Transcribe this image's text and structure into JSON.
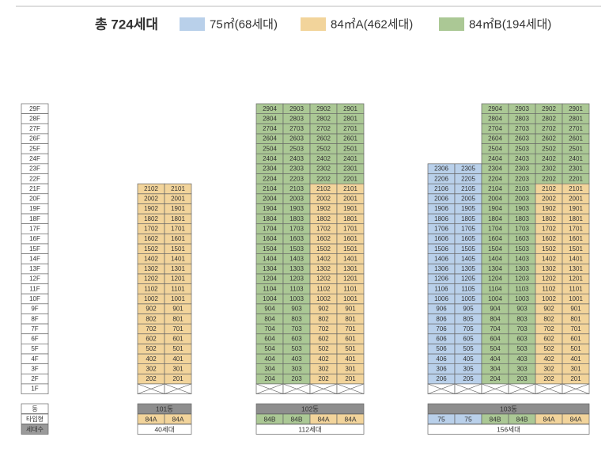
{
  "header": {
    "total": "총 724세대",
    "legend": [
      {
        "label": "75㎡(68세대)",
        "color": "#b9d0ea"
      },
      {
        "label": "84㎡A(462세대)",
        "color": "#f2d49b"
      },
      {
        "label": "84㎡B(194세대)",
        "color": "#abc895"
      }
    ]
  },
  "floor_labels": [
    "29F",
    "28F",
    "27F",
    "26F",
    "25F",
    "24F",
    "23F",
    "22F",
    "21F",
    "20F",
    "19F",
    "18F",
    "17F",
    "16F",
    "15F",
    "14F",
    "13F",
    "12F",
    "11F",
    "10F",
    "9F",
    "8F",
    "7F",
    "6F",
    "5F",
    "4F",
    "3F",
    "2F",
    "1F"
  ],
  "row_labels": [
    "동",
    "타입형",
    "세대수"
  ],
  "buildings": [
    {
      "name": "101동",
      "households": "40세대",
      "types": [
        "84A",
        "84A"
      ],
      "type_kinds": [
        1,
        1
      ],
      "units": [
        [
          "202",
          "201"
        ],
        [
          "302",
          "301"
        ],
        [
          "402",
          "401"
        ],
        [
          "502",
          "501"
        ],
        [
          "602",
          "601"
        ],
        [
          "702",
          "701"
        ],
        [
          "802",
          "801"
        ],
        [
          "902",
          "901"
        ],
        [
          "1002",
          "1001"
        ],
        [
          "1102",
          "1101"
        ],
        [
          "1202",
          "1201"
        ],
        [
          "1302",
          "1301"
        ],
        [
          "1402",
          "1401"
        ],
        [
          "1502",
          "1501"
        ],
        [
          "1602",
          "1601"
        ],
        [
          "1702",
          "1701"
        ],
        [
          "1802",
          "1801"
        ],
        [
          "1902",
          "1901"
        ],
        [
          "2002",
          "2001"
        ],
        [
          "2102",
          "2101"
        ]
      ],
      "kinds": [
        [
          1,
          1
        ],
        [
          1,
          1
        ],
        [
          1,
          1
        ],
        [
          1,
          1
        ],
        [
          1,
          1
        ],
        [
          1,
          1
        ],
        [
          1,
          1
        ],
        [
          1,
          1
        ],
        [
          1,
          1
        ],
        [
          1,
          1
        ],
        [
          1,
          1
        ],
        [
          1,
          1
        ],
        [
          1,
          1
        ],
        [
          1,
          1
        ],
        [
          1,
          1
        ],
        [
          1,
          1
        ],
        [
          1,
          1
        ],
        [
          1,
          1
        ],
        [
          1,
          1
        ],
        [
          1,
          1
        ]
      ]
    },
    {
      "name": "102동",
      "households": "112세대",
      "types": [
        "84B",
        "84B",
        "84A",
        "84A"
      ],
      "type_kinds": [
        2,
        2,
        1,
        1
      ],
      "units": [
        [
          "204",
          "203",
          "202",
          "201"
        ],
        [
          "304",
          "303",
          "302",
          "301"
        ],
        [
          "404",
          "403",
          "402",
          "401"
        ],
        [
          "504",
          "503",
          "502",
          "501"
        ],
        [
          "604",
          "603",
          "602",
          "601"
        ],
        [
          "704",
          "703",
          "702",
          "701"
        ],
        [
          "804",
          "803",
          "802",
          "801"
        ],
        [
          "904",
          "903",
          "902",
          "901"
        ],
        [
          "1004",
          "1003",
          "1002",
          "1001"
        ],
        [
          "1104",
          "1103",
          "1102",
          "1101"
        ],
        [
          "1204",
          "1203",
          "1202",
          "1201"
        ],
        [
          "1304",
          "1303",
          "1302",
          "1301"
        ],
        [
          "1404",
          "1403",
          "1402",
          "1401"
        ],
        [
          "1504",
          "1503",
          "1502",
          "1501"
        ],
        [
          "1604",
          "1603",
          "1602",
          "1601"
        ],
        [
          "1704",
          "1703",
          "1702",
          "1701"
        ],
        [
          "1804",
          "1803",
          "1802",
          "1801"
        ],
        [
          "1904",
          "1903",
          "1902",
          "1901"
        ],
        [
          "2004",
          "2003",
          "2002",
          "2001"
        ],
        [
          "2104",
          "2103",
          "2102",
          "2101"
        ],
        [
          "2204",
          "2203",
          "2202",
          "2201"
        ],
        [
          "2304",
          "2303",
          "2302",
          "2301"
        ],
        [
          "2404",
          "2403",
          "2402",
          "2401"
        ],
        [
          "2504",
          "2503",
          "2502",
          "2501"
        ],
        [
          "2604",
          "2603",
          "2602",
          "2601"
        ],
        [
          "2704",
          "2703",
          "2702",
          "2701"
        ],
        [
          "2804",
          "2803",
          "2802",
          "2801"
        ],
        [
          "2904",
          "2903",
          "2902",
          "2901"
        ]
      ],
      "kinds": [
        [
          2,
          2,
          1,
          1
        ],
        [
          2,
          2,
          1,
          1
        ],
        [
          2,
          2,
          1,
          1
        ],
        [
          2,
          2,
          1,
          1
        ],
        [
          2,
          2,
          1,
          1
        ],
        [
          2,
          2,
          1,
          1
        ],
        [
          2,
          2,
          1,
          1
        ],
        [
          2,
          2,
          1,
          1
        ],
        [
          2,
          2,
          1,
          1
        ],
        [
          2,
          2,
          1,
          1
        ],
        [
          2,
          2,
          1,
          1
        ],
        [
          2,
          2,
          1,
          1
        ],
        [
          2,
          2,
          1,
          1
        ],
        [
          2,
          2,
          1,
          1
        ],
        [
          2,
          2,
          1,
          1
        ],
        [
          2,
          2,
          1,
          1
        ],
        [
          2,
          2,
          1,
          1
        ],
        [
          2,
          2,
          1,
          1
        ],
        [
          2,
          2,
          1,
          1
        ],
        [
          2,
          2,
          1,
          1
        ],
        [
          2,
          2,
          2,
          2
        ],
        [
          2,
          2,
          2,
          2
        ],
        [
          2,
          2,
          2,
          2
        ],
        [
          2,
          2,
          2,
          2
        ],
        [
          2,
          2,
          2,
          2
        ],
        [
          2,
          2,
          2,
          2
        ],
        [
          2,
          2,
          2,
          2
        ],
        [
          2,
          2,
          2,
          2
        ]
      ]
    },
    {
      "name": "103동",
      "households": "156세대",
      "types": [
        "75",
        "75",
        "84B",
        "84B",
        "84A",
        "84A"
      ],
      "type_kinds": [
        0,
        0,
        2,
        2,
        1,
        1
      ],
      "units": [
        [
          "206",
          "205",
          "204",
          "203",
          "202",
          "201"
        ],
        [
          "306",
          "305",
          "304",
          "303",
          "302",
          "301"
        ],
        [
          "406",
          "405",
          "404",
          "403",
          "402",
          "401"
        ],
        [
          "506",
          "505",
          "504",
          "503",
          "502",
          "501"
        ],
        [
          "606",
          "605",
          "604",
          "603",
          "602",
          "601"
        ],
        [
          "706",
          "705",
          "704",
          "703",
          "702",
          "701"
        ],
        [
          "806",
          "805",
          "804",
          "803",
          "802",
          "801"
        ],
        [
          "906",
          "905",
          "904",
          "903",
          "902",
          "901"
        ],
        [
          "1006",
          "1005",
          "1004",
          "1003",
          "1002",
          "1001"
        ],
        [
          "1106",
          "1105",
          "1104",
          "1103",
          "1102",
          "1101"
        ],
        [
          "1206",
          "1205",
          "1204",
          "1203",
          "1202",
          "1201"
        ],
        [
          "1306",
          "1305",
          "1304",
          "1303",
          "1302",
          "1301"
        ],
        [
          "1406",
          "1405",
          "1404",
          "1403",
          "1402",
          "1401"
        ],
        [
          "1506",
          "1505",
          "1504",
          "1503",
          "1502",
          "1501"
        ],
        [
          "1606",
          "1605",
          "1604",
          "1603",
          "1602",
          "1601"
        ],
        [
          "1706",
          "1705",
          "1704",
          "1703",
          "1702",
          "1701"
        ],
        [
          "1806",
          "1805",
          "1804",
          "1803",
          "1802",
          "1801"
        ],
        [
          "1906",
          "1905",
          "1904",
          "1903",
          "1902",
          "1901"
        ],
        [
          "2006",
          "2005",
          "2004",
          "2003",
          "2002",
          "2001"
        ],
        [
          "2106",
          "2105",
          "2104",
          "2103",
          "2102",
          "2101"
        ],
        [
          "2206",
          "2205",
          "2204",
          "2203",
          "2202",
          "2201"
        ],
        [
          "2306",
          "2305",
          "2304",
          "2303",
          "2302",
          "2301"
        ],
        [
          null,
          null,
          "2404",
          "2403",
          "2402",
          "2401"
        ],
        [
          null,
          null,
          "2504",
          "2503",
          "2502",
          "2501"
        ],
        [
          null,
          null,
          "2604",
          "2603",
          "2602",
          "2601"
        ],
        [
          null,
          null,
          "2704",
          "2703",
          "2702",
          "2701"
        ],
        [
          null,
          null,
          "2804",
          "2803",
          "2802",
          "2801"
        ],
        [
          null,
          null,
          "2904",
          "2903",
          "2902",
          "2901"
        ]
      ],
      "kinds": [
        [
          0,
          0,
          2,
          2,
          1,
          1
        ],
        [
          0,
          0,
          2,
          2,
          1,
          1
        ],
        [
          0,
          0,
          2,
          2,
          1,
          1
        ],
        [
          0,
          0,
          2,
          2,
          1,
          1
        ],
        [
          0,
          0,
          2,
          2,
          1,
          1
        ],
        [
          0,
          0,
          2,
          2,
          1,
          1
        ],
        [
          0,
          0,
          2,
          2,
          1,
          1
        ],
        [
          0,
          0,
          2,
          2,
          1,
          1
        ],
        [
          0,
          0,
          2,
          2,
          1,
          1
        ],
        [
          0,
          0,
          2,
          2,
          1,
          1
        ],
        [
          0,
          0,
          2,
          2,
          1,
          1
        ],
        [
          0,
          0,
          2,
          2,
          1,
          1
        ],
        [
          0,
          0,
          2,
          2,
          1,
          1
        ],
        [
          0,
          0,
          2,
          2,
          1,
          1
        ],
        [
          0,
          0,
          2,
          2,
          1,
          1
        ],
        [
          0,
          0,
          2,
          2,
          1,
          1
        ],
        [
          0,
          0,
          2,
          2,
          1,
          1
        ],
        [
          0,
          0,
          2,
          2,
          1,
          1
        ],
        [
          0,
          0,
          2,
          2,
          1,
          1
        ],
        [
          0,
          0,
          2,
          2,
          1,
          1
        ],
        [
          0,
          0,
          2,
          2,
          2,
          2
        ],
        [
          0,
          0,
          2,
          2,
          2,
          2
        ],
        [
          null,
          null,
          2,
          2,
          2,
          2
        ],
        [
          null,
          null,
          2,
          2,
          2,
          2
        ],
        [
          null,
          null,
          2,
          2,
          2,
          2
        ],
        [
          null,
          null,
          2,
          2,
          2,
          2
        ],
        [
          null,
          null,
          2,
          2,
          2,
          2
        ],
        [
          null,
          null,
          2,
          2,
          2,
          2
        ]
      ]
    }
  ]
}
